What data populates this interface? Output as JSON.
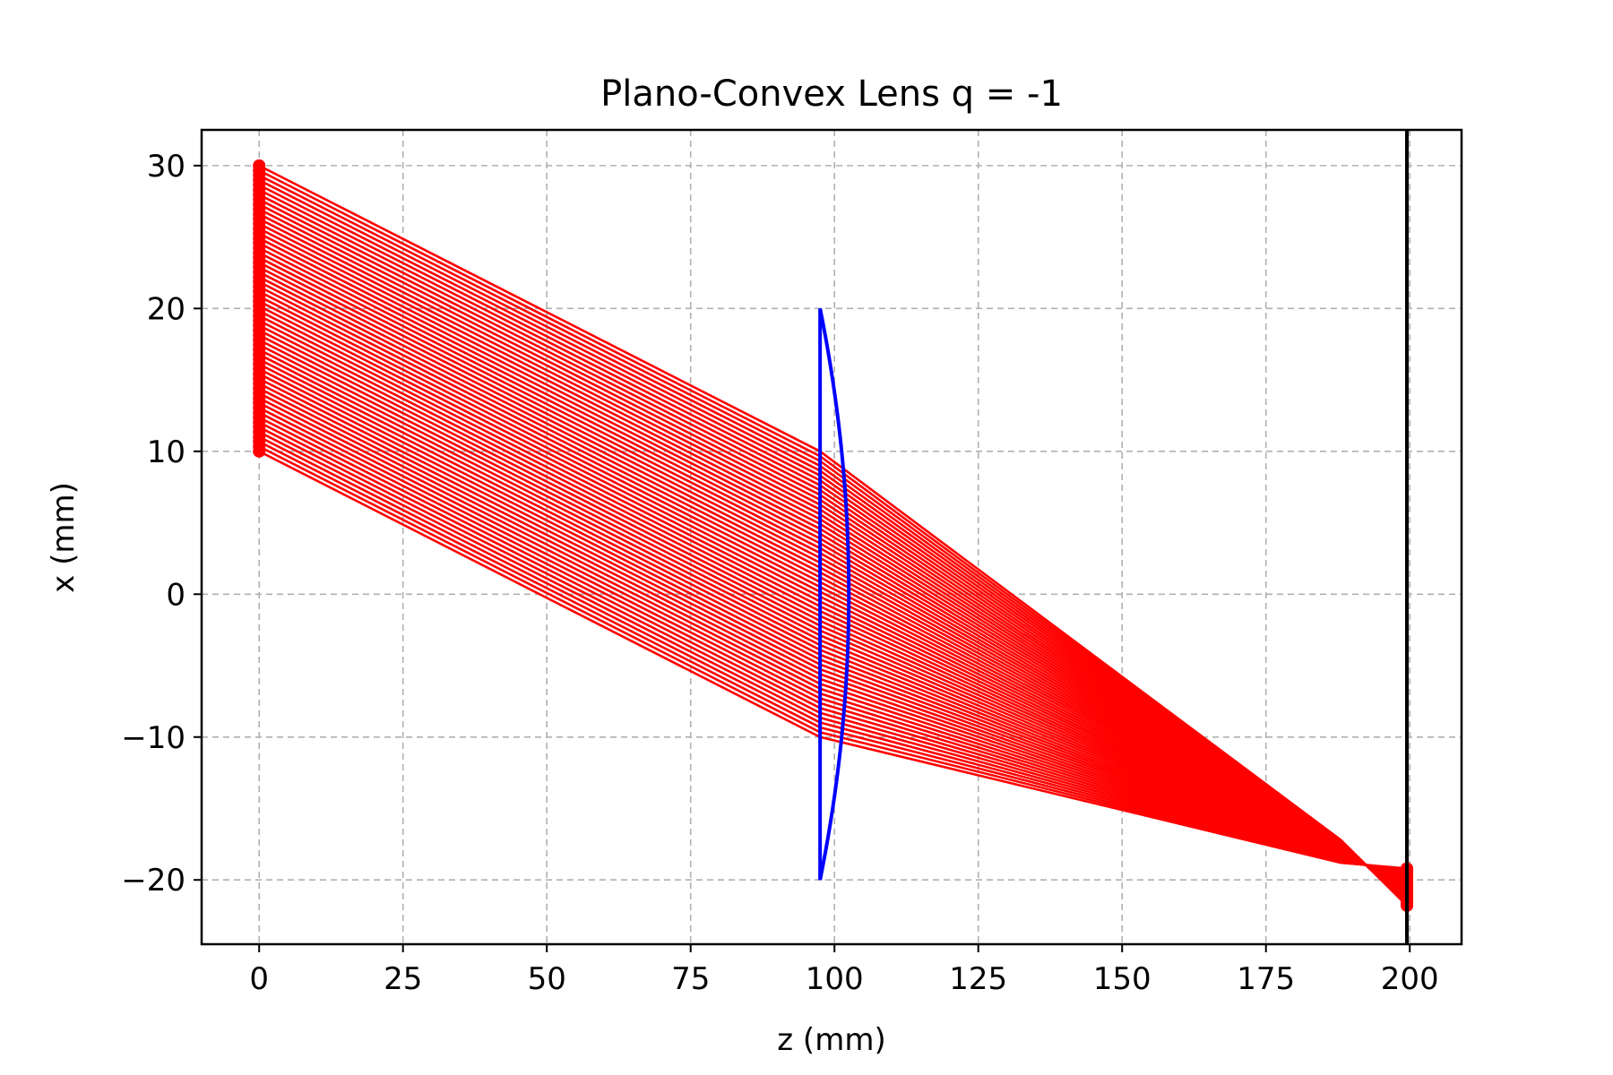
{
  "chart_data": {
    "type": "line",
    "title": "Plano-Convex Lens q = -1",
    "xlabel": "z (mm)",
    "ylabel": "x (mm)",
    "xlim": [
      -10,
      209
    ],
    "ylim": [
      -24.5,
      32.5
    ],
    "xticks": [
      0,
      25,
      50,
      75,
      100,
      125,
      150,
      175,
      200
    ],
    "yticks": [
      -20,
      -10,
      0,
      10,
      20,
      30
    ],
    "xtick_labels": [
      "0",
      "25",
      "50",
      "75",
      "100",
      "125",
      "150",
      "175",
      "200"
    ],
    "ytick_labels": [
      "−20",
      "−10",
      "0",
      "10",
      "20",
      "30"
    ],
    "grid": true,
    "legend": "none",
    "colors": {
      "rays": "#ff0000",
      "lens": "#0000ff",
      "screen": "#000000",
      "grid": "#b0b0b0"
    },
    "rays": {
      "source_z": 0,
      "x0_range": [
        10,
        30
      ],
      "count": 60,
      "lens_z": 97.5,
      "lens_x_range": [
        -10,
        10
      ],
      "kink_z": 188,
      "kink_x_range": [
        -18.8,
        -17.2
      ],
      "image_z": 199.5,
      "image_x_range": [
        -21.8,
        -19.2
      ]
    },
    "lens": {
      "plane_z": 97.5,
      "vertex_z": 102.5,
      "half_aperture": 20
    },
    "screen_z": 199.5
  }
}
